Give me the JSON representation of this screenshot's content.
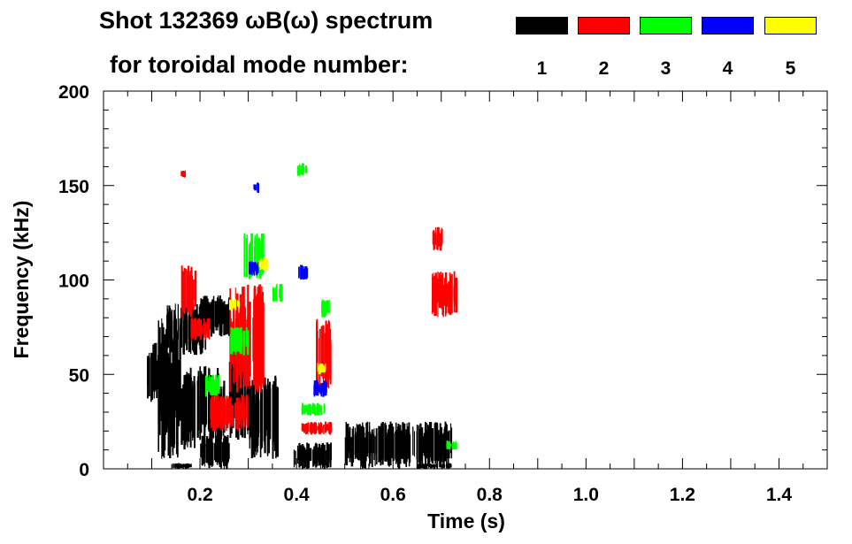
{
  "title": "Shot 132369 ωB(ω) spectrum",
  "legend_caption": "for toroidal mode number:",
  "legend": [
    {
      "label": "1",
      "color": "#000000"
    },
    {
      "label": "2",
      "color": "#ff0000"
    },
    {
      "label": "3",
      "color": "#00ff00"
    },
    {
      "label": "4",
      "color": "#0000ff"
    },
    {
      "label": "5",
      "color": "#ffff00"
    }
  ],
  "chart_data": {
    "type": "heatmap",
    "title": "Shot 132369 ωB(ω) spectrum",
    "xlabel": "Time (s)",
    "ylabel": "Frequency (kHz)",
    "xlim": [
      0.0,
      1.5
    ],
    "ylim": [
      0,
      200
    ],
    "xticks": [
      0.2,
      0.4,
      0.6,
      0.8,
      1.0,
      1.2,
      1.4
    ],
    "xtick_labels": [
      "0.2",
      "0.4",
      "0.6",
      "0.8",
      "1.0",
      "1.2",
      "1.4"
    ],
    "yticks": [
      0,
      50,
      100,
      150,
      200
    ],
    "ytick_labels": [
      "0",
      "50",
      "100",
      "150",
      "200"
    ],
    "x_minor_step": 0.05,
    "y_minor_step": 10,
    "series": [
      {
        "name": "n=1",
        "color": "#000000",
        "regions": [
          {
            "t": [
              0.09,
              0.13
            ],
            "f": [
              35,
              68
            ]
          },
          {
            "t": [
              0.11,
              0.16
            ],
            "f": [
              5,
              80
            ]
          },
          {
            "t": [
              0.13,
              0.21
            ],
            "f": [
              60,
              88
            ]
          },
          {
            "t": [
              0.2,
              0.26
            ],
            "f": [
              70,
              92
            ]
          },
          {
            "t": [
              0.16,
              0.25
            ],
            "f": [
              10,
              55
            ]
          },
          {
            "t": [
              0.2,
              0.26
            ],
            "f": [
              0,
              18
            ]
          },
          {
            "t": [
              0.26,
              0.3
            ],
            "f": [
              15,
              75
            ]
          },
          {
            "t": [
              0.3,
              0.36
            ],
            "f": [
              5,
              50
            ]
          },
          {
            "t": [
              0.39,
              0.47
            ],
            "f": [
              0,
              14
            ]
          },
          {
            "t": [
              0.14,
              0.18
            ],
            "f": [
              0,
              3
            ]
          },
          {
            "t": [
              0.5,
              0.72
            ],
            "f": [
              0,
              25
            ]
          },
          {
            "t": [
              0.65,
              0.72
            ],
            "f": [
              0,
              3
            ]
          }
        ]
      },
      {
        "name": "n=2",
        "color": "#ff0000",
        "regions": [
          {
            "t": [
              0.18,
              0.22
            ],
            "f": [
              68,
              80
            ]
          },
          {
            "t": [
              0.22,
              0.3
            ],
            "f": [
              20,
              40
            ]
          },
          {
            "t": [
              0.26,
              0.33
            ],
            "f": [
              40,
              98
            ]
          },
          {
            "t": [
              0.16,
              0.19
            ],
            "f": [
              80,
              108
            ]
          },
          {
            "t": [
              0.41,
              0.47
            ],
            "f": [
              18,
              25
            ]
          },
          {
            "t": [
              0.44,
              0.47
            ],
            "f": [
              40,
              80
            ]
          },
          {
            "t": [
              0.68,
              0.73
            ],
            "f": [
              80,
              105
            ]
          },
          {
            "t": [
              0.68,
              0.7
            ],
            "f": [
              115,
              128
            ]
          },
          {
            "t": [
              0.16,
              0.17
            ],
            "f": [
              154,
              158
            ]
          }
        ]
      },
      {
        "name": "n=3",
        "color": "#00ff00",
        "regions": [
          {
            "t": [
              0.21,
              0.24
            ],
            "f": [
              38,
              50
            ]
          },
          {
            "t": [
              0.41,
              0.46
            ],
            "f": [
              28,
              35
            ]
          },
          {
            "t": [
              0.29,
              0.33
            ],
            "f": [
              100,
              125
            ]
          },
          {
            "t": [
              0.35,
              0.37
            ],
            "f": [
              88,
              98
            ]
          },
          {
            "t": [
              0.26,
              0.3
            ],
            "f": [
              60,
              75
            ]
          },
          {
            "t": [
              0.4,
              0.42
            ],
            "f": [
              155,
              162
            ]
          },
          {
            "t": [
              0.45,
              0.47
            ],
            "f": [
              80,
              90
            ]
          },
          {
            "t": [
              0.71,
              0.73
            ],
            "f": [
              10,
              15
            ]
          }
        ]
      },
      {
        "name": "n=4",
        "color": "#0000ff",
        "regions": [
          {
            "t": [
              0.43,
              0.46
            ],
            "f": [
              38,
              47
            ]
          },
          {
            "t": [
              0.3,
              0.32
            ],
            "f": [
              102,
              110
            ]
          },
          {
            "t": [
              0.4,
              0.42
            ],
            "f": [
              100,
              108
            ]
          },
          {
            "t": [
              0.31,
              0.32
            ],
            "f": [
              146,
              152
            ]
          }
        ]
      },
      {
        "name": "n=5",
        "color": "#ffff00",
        "regions": [
          {
            "t": [
              0.44,
              0.46
            ],
            "f": [
              50,
              56
            ]
          },
          {
            "t": [
              0.32,
              0.34
            ],
            "f": [
              105,
              112
            ]
          },
          {
            "t": [
              0.26,
              0.28
            ],
            "f": [
              84,
              90
            ]
          }
        ]
      }
    ]
  }
}
